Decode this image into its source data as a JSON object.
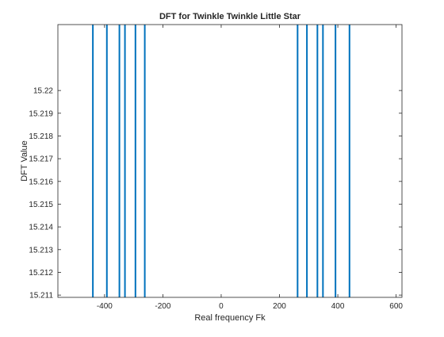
{
  "chart_data": {
    "type": "stem",
    "title": "DFT for Twinkle Twinkle Little Star",
    "xlabel": "Real frequency Fk",
    "ylabel": "DFT Value",
    "xlim": [
      -560,
      620
    ],
    "ylim": [
      15.2109,
      15.2229
    ],
    "xticks": [
      -400,
      -200,
      0,
      200,
      400,
      600
    ],
    "yticks": [
      15.211,
      15.212,
      15.213,
      15.214,
      15.215,
      15.216,
      15.217,
      15.218,
      15.219,
      15.22
    ],
    "ytick_labels": [
      "15.211",
      "15.212",
      "15.213",
      "15.214",
      "15.215",
      "15.216",
      "15.217",
      "15.218",
      "15.219",
      "15.22"
    ],
    "x": [
      -440,
      -392,
      -349,
      -330,
      -294,
      -262,
      262,
      294,
      330,
      349,
      392,
      440
    ],
    "y": [
      15.25,
      15.25,
      15.25,
      15.25,
      15.25,
      15.25,
      15.25,
      15.25,
      15.25,
      15.25,
      15.25,
      15.25
    ],
    "color": "#0072BD",
    "grid": false,
    "legend": "none"
  }
}
